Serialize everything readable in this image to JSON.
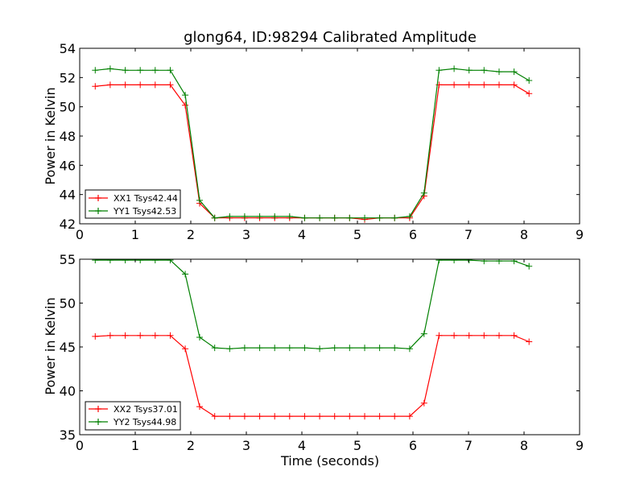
{
  "colors": {
    "xx": "#ff0000",
    "yy": "#008000",
    "axis": "#000000"
  },
  "chart_data": [
    {
      "type": "line",
      "title": "glong64, ID:98294 Calibrated Amplitude",
      "xlabel": "",
      "ylabel": "Power in Kelvin",
      "xlim": [
        0,
        9
      ],
      "ylim": [
        42,
        54
      ],
      "xticks": [
        0,
        1,
        2,
        3,
        4,
        5,
        6,
        7,
        8,
        9
      ],
      "yticks": [
        42,
        44,
        46,
        48,
        50,
        52,
        54
      ],
      "legend_position": "lower-left",
      "x": [
        0.28,
        0.55,
        0.82,
        1.09,
        1.36,
        1.63,
        1.9,
        2.16,
        2.43,
        2.7,
        2.97,
        3.24,
        3.51,
        3.78,
        4.05,
        4.32,
        4.59,
        4.86,
        5.13,
        5.4,
        5.67,
        5.94,
        6.2,
        6.47,
        6.74,
        7.01,
        7.28,
        7.55,
        7.82,
        8.09
      ],
      "series": [
        {
          "name": "XX1 Tsys42.44",
          "color": "#ff0000",
          "values": [
            51.4,
            51.5,
            51.5,
            51.5,
            51.5,
            51.5,
            50.1,
            43.4,
            42.4,
            42.4,
            42.4,
            42.4,
            42.4,
            42.4,
            42.4,
            42.4,
            42.4,
            42.4,
            42.3,
            42.4,
            42.4,
            42.4,
            43.9,
            51.5,
            51.5,
            51.5,
            51.5,
            51.5,
            51.5,
            50.9
          ]
        },
        {
          "name": "YY1 Tsys42.53",
          "color": "#008000",
          "values": [
            52.5,
            52.6,
            52.5,
            52.5,
            52.5,
            52.5,
            50.8,
            43.6,
            42.4,
            42.5,
            42.5,
            42.5,
            42.5,
            42.5,
            42.4,
            42.4,
            42.4,
            42.4,
            42.4,
            42.4,
            42.4,
            42.5,
            44.1,
            52.5,
            52.6,
            52.5,
            52.5,
            52.4,
            52.4,
            51.8
          ]
        }
      ]
    },
    {
      "type": "line",
      "title": "",
      "xlabel": "Time (seconds)",
      "ylabel": "Power in Kelvin",
      "xlim": [
        0,
        9
      ],
      "ylim": [
        35,
        55
      ],
      "xticks": [
        0,
        1,
        2,
        3,
        4,
        5,
        6,
        7,
        8,
        9
      ],
      "yticks": [
        35,
        40,
        45,
        50,
        55
      ],
      "legend_position": "lower-left",
      "x": [
        0.28,
        0.55,
        0.82,
        1.09,
        1.36,
        1.63,
        1.9,
        2.16,
        2.43,
        2.7,
        2.97,
        3.24,
        3.51,
        3.78,
        4.05,
        4.32,
        4.59,
        4.86,
        5.13,
        5.4,
        5.67,
        5.94,
        6.2,
        6.47,
        6.74,
        7.01,
        7.28,
        7.55,
        7.82,
        8.09
      ],
      "series": [
        {
          "name": "XX2 Tsys37.01",
          "color": "#ff0000",
          "values": [
            46.2,
            46.3,
            46.3,
            46.3,
            46.3,
            46.3,
            44.8,
            38.2,
            37.1,
            37.1,
            37.1,
            37.1,
            37.1,
            37.1,
            37.1,
            37.1,
            37.1,
            37.1,
            37.1,
            37.1,
            37.1,
            37.1,
            38.6,
            46.3,
            46.3,
            46.3,
            46.3,
            46.3,
            46.3,
            45.6
          ]
        },
        {
          "name": "YY2 Tsys44.98",
          "color": "#008000",
          "values": [
            54.9,
            54.9,
            54.9,
            54.9,
            54.9,
            54.9,
            53.3,
            46.1,
            44.9,
            44.8,
            44.9,
            44.9,
            44.9,
            44.9,
            44.9,
            44.8,
            44.9,
            44.9,
            44.9,
            44.9,
            44.9,
            44.8,
            46.5,
            54.9,
            54.9,
            54.9,
            54.8,
            54.8,
            54.8,
            54.2
          ]
        }
      ]
    }
  ]
}
